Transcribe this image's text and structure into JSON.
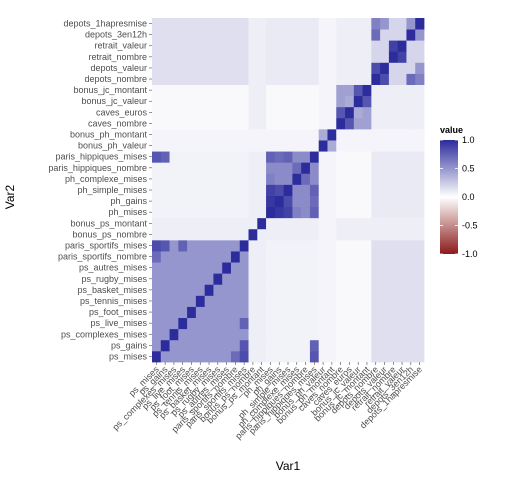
{
  "chart_data": {
    "type": "heatmap",
    "xlabel": "Var1",
    "ylabel": "Var2",
    "variables": [
      "ps_mises",
      "ps_gains",
      "ps_complexes_mises",
      "ps_live_mises",
      "ps_foot_mises",
      "ps_tennis_mises",
      "ps_basket_mises",
      "ps_rugby_mises",
      "ps_autres_mises",
      "paris_sportifs_nombre",
      "paris_sportifs_mises",
      "bonus_ps_nombre",
      "bonus_ps_montant",
      "ph_mises",
      "ph_gains",
      "ph_simple_mises",
      "ph_complexe_mises",
      "paris_hippiques_nombre",
      "paris_hippiques_mises",
      "bonus_ph_valeur",
      "bonus_ph_montant",
      "caves_nombre",
      "caves_euros",
      "bonus_jc_valeur",
      "bonus_jc_montant",
      "depots_nombre",
      "depots_valeur",
      "retrait_nombre",
      "retrait_valeur",
      "depots_3en12h",
      "depots_1hapresmise"
    ],
    "blocks": [
      {
        "rows": [
          0,
          10
        ],
        "cols": [
          0,
          10
        ],
        "value": 0.5
      },
      {
        "rows": [
          13,
          18
        ],
        "cols": [
          13,
          18
        ],
        "value": 0.55
      },
      {
        "rows": [
          21,
          24
        ],
        "cols": [
          21,
          24
        ],
        "value": 0.45
      },
      {
        "rows": [
          25,
          30
        ],
        "cols": [
          25,
          30
        ],
        "value": 0.2
      },
      {
        "rows": [
          0,
          10
        ],
        "cols": [
          25,
          30
        ],
        "value": 0.15
      },
      {
        "rows": [
          13,
          18
        ],
        "cols": [
          25,
          30
        ],
        "value": 0.1
      },
      {
        "rows": [
          21,
          24
        ],
        "cols": [
          25,
          30
        ],
        "value": 0.08
      },
      {
        "rows": [
          0,
          10
        ],
        "cols": [
          13,
          18
        ],
        "value": 0.06
      },
      {
        "rows": [
          11,
          12
        ],
        "cols": [
          0,
          30
        ],
        "value": 0.08
      },
      {
        "rows": [
          19,
          20
        ],
        "cols": [
          0,
          30
        ],
        "value": 0.05
      }
    ],
    "accents": [
      {
        "row": 0,
        "col": 10,
        "value": 0.85
      },
      {
        "row": 1,
        "col": 10,
        "value": 0.8
      },
      {
        "row": 3,
        "col": 10,
        "value": 0.75
      },
      {
        "row": 0,
        "col": 18,
        "value": 0.8
      },
      {
        "row": 1,
        "col": 18,
        "value": 0.75
      },
      {
        "row": 0,
        "col": 9,
        "value": 0.7
      },
      {
        "row": 13,
        "col": 18,
        "value": 0.75
      },
      {
        "row": 14,
        "col": 18,
        "value": 0.7
      },
      {
        "row": 15,
        "col": 18,
        "value": 0.75
      },
      {
        "row": 14,
        "col": 13,
        "value": 0.95
      },
      {
        "row": 15,
        "col": 13,
        "value": 0.9
      },
      {
        "row": 15,
        "col": 14,
        "value": 0.85
      },
      {
        "row": 16,
        "col": 13,
        "value": 0.6
      },
      {
        "row": 16,
        "col": 17,
        "value": 0.7
      },
      {
        "row": 19,
        "col": 20,
        "value": 0.4
      },
      {
        "row": 22,
        "col": 21,
        "value": 0.8
      },
      {
        "row": 23,
        "col": 24,
        "value": 0.8
      },
      {
        "row": 22,
        "col": 23,
        "value": 0.4
      },
      {
        "row": 26,
        "col": 25,
        "value": 0.85
      },
      {
        "row": 28,
        "col": 27,
        "value": 0.9
      },
      {
        "row": 29,
        "col": 25,
        "value": 0.7
      },
      {
        "row": 30,
        "col": 25,
        "value": 0.6
      },
      {
        "row": 26,
        "col": 30,
        "value": 0.5
      },
      {
        "row": 29,
        "col": 30,
        "value": 0.5
      }
    ],
    "diagonal_value": 1.0,
    "color_scale": {
      "low": "#8b1a1a",
      "mid": "#ffffff",
      "high": "#2c2c9c",
      "limits": [
        -1,
        1
      ]
    },
    "legend": {
      "title": "value",
      "ticks": [
        1.0,
        0.5,
        0.0,
        -0.5,
        -1.0
      ],
      "labels": [
        "1.0",
        "0.5",
        "0.0",
        "-0.5",
        "-1.0"
      ],
      "placement": "right"
    },
    "grid": false
  }
}
